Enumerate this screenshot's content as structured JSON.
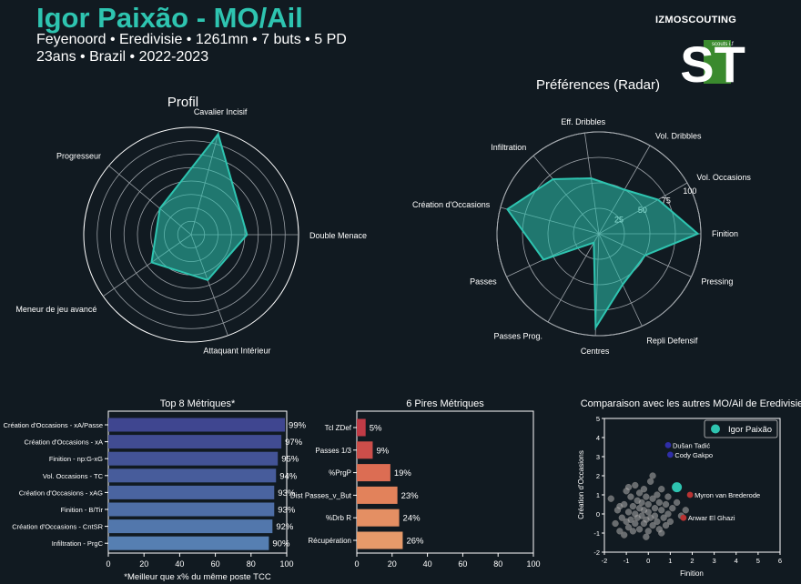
{
  "header": {
    "title": "Igor Paixão - MO/Ail",
    "line1": "Feyenoord • Eredivisie • 1261mn • 7 buts • 5 PD",
    "line2": "23ans • Brazil • 2022-2023",
    "brand": "IZMOSCOUTING",
    "logo_text": "ST",
    "logo_small": "scouts i.f"
  },
  "colors": {
    "bg": "#111a21",
    "accent": "#2ec4b0",
    "grid": "#9aa0a6"
  },
  "chart_data": [
    {
      "id": "profil",
      "type": "radar",
      "title": "Profil",
      "axes": [
        "Cavalier Incisif",
        "Progresseur",
        "Meneur de jeu avancé",
        "Attaquant Intérieur",
        "Double Menace"
      ],
      "angles_deg": [
        75,
        140,
        215,
        290,
        0
      ],
      "values": [
        97,
        38,
        45,
        45,
        52
      ],
      "rmax": 100,
      "rings": 7
    },
    {
      "id": "preferences",
      "type": "radar",
      "title": "Préférences (Radar)",
      "axes": [
        "Finition",
        "Pressing",
        "Repli Defensif",
        "Centres",
        "Passes Prog.",
        "Passes",
        "Création d'Occasions",
        "Infiltration",
        "Eff. Dribbles",
        "Vol. Dribbles",
        "Vol. Occasions"
      ],
      "angles_deg": [
        0,
        -25,
        -65,
        -92,
        -120,
        -155,
        165,
        130,
        98,
        60,
        30
      ],
      "values": [
        97,
        50,
        55,
        92,
        10,
        60,
        93,
        70,
        55,
        50,
        67
      ],
      "rmax": 100,
      "tick_labels": [
        "25",
        "50",
        "75",
        "100"
      ],
      "tick_values": [
        25,
        50,
        75,
        100
      ]
    },
    {
      "id": "top8",
      "type": "bar",
      "orientation": "horizontal",
      "title": "Top 8 Métriques*",
      "categories": [
        "Création d'Occasions - xA/Passe",
        "Création d'Occasions - xA",
        "Finition - np:G-xG",
        "Vol. Occasions - TC",
        "Création d'Occasions - xAG",
        "Finition - B/Tir",
        "Création d'Occasions - CntSR",
        "Infiltration - PrgC"
      ],
      "values": [
        99,
        97,
        95,
        94,
        93,
        93,
        92,
        90
      ],
      "value_labels": [
        "99%",
        "97%",
        "95%",
        "94%",
        "93%",
        "93%",
        "92%",
        "90%"
      ],
      "bar_colors": [
        "#3f4690",
        "#414c92",
        "#435396",
        "#475c9b",
        "#4a64a0",
        "#4e6ea6",
        "#5277ac",
        "#567fb2"
      ],
      "xlim": [
        0,
        100
      ],
      "xticks": [
        "0",
        "20",
        "40",
        "60",
        "80",
        "100"
      ],
      "note": "*Meilleur que x% du même poste TCC"
    },
    {
      "id": "worst6",
      "type": "bar",
      "orientation": "horizontal",
      "title": "6 Pires Métriques",
      "categories": [
        "Tcl ZDef",
        "Passes 1/3",
        "%PrgP",
        "Dist Passes_v_But",
        "%Drb R",
        "Récupération"
      ],
      "values": [
        5,
        9,
        19,
        23,
        24,
        26
      ],
      "value_labels": [
        "5%",
        "9%",
        "19%",
        "23%",
        "24%",
        "26%"
      ],
      "bar_colors": [
        "#c03b46",
        "#cc4e4a",
        "#dc6d53",
        "#e2825b",
        "#e48f63",
        "#e69a6a"
      ],
      "xlim": [
        0,
        100
      ],
      "xticks": [
        "0",
        "20",
        "40",
        "60",
        "80",
        "100"
      ]
    },
    {
      "id": "comparaison",
      "type": "scatter",
      "title": "Comparaison avec les autres MO/Ail de Eredivisie",
      "xlabel": "Finition",
      "ylabel": "Création d'Occasions",
      "xlim": [
        -2,
        6
      ],
      "ylim": [
        -2,
        5
      ],
      "xticks": [
        "-2",
        "-1",
        "0",
        "1",
        "2",
        "3",
        "4",
        "5",
        "6"
      ],
      "yticks": [
        "-2",
        "-1",
        "0",
        "1",
        "2",
        "3",
        "4",
        "5"
      ],
      "legend": "Igor Paixão",
      "others": [
        [
          -1.7,
          0.8
        ],
        [
          -1.5,
          -0.5
        ],
        [
          -1.4,
          0.2
        ],
        [
          -1.3,
          -0.9
        ],
        [
          -1.2,
          -0.2
        ],
        [
          -1.1,
          0.5
        ],
        [
          -1.1,
          -1.1
        ],
        [
          -1.0,
          1.2
        ],
        [
          -1.0,
          -0.4
        ],
        [
          -0.9,
          0.1
        ],
        [
          -0.9,
          -0.7
        ],
        [
          -0.8,
          0.9
        ],
        [
          -0.8,
          -0.3
        ],
        [
          -0.7,
          0.4
        ],
        [
          -0.7,
          -0.9
        ],
        [
          -0.6,
          1.5
        ],
        [
          -0.6,
          0.0
        ],
        [
          -0.6,
          -0.5
        ],
        [
          -0.5,
          0.7
        ],
        [
          -0.5,
          -0.2
        ],
        [
          -0.4,
          1.1
        ],
        [
          -0.4,
          0.3
        ],
        [
          -0.4,
          -0.8
        ],
        [
          -0.3,
          -0.1
        ],
        [
          -0.3,
          0.6
        ],
        [
          -0.2,
          1.3
        ],
        [
          -0.2,
          0.2
        ],
        [
          -0.2,
          -0.5
        ],
        [
          -0.1,
          0.9
        ],
        [
          -0.1,
          -0.3
        ],
        [
          0.0,
          0.5
        ],
        [
          0.0,
          -0.9
        ],
        [
          0.0,
          0.1
        ],
        [
          0.1,
          1.7
        ],
        [
          0.1,
          -0.2
        ],
        [
          0.2,
          0.8
        ],
        [
          0.2,
          -0.6
        ],
        [
          0.3,
          0.3
        ],
        [
          0.3,
          -0.1
        ],
        [
          0.4,
          1.0
        ],
        [
          0.4,
          -0.4
        ],
        [
          0.5,
          0.6
        ],
        [
          0.5,
          -0.8
        ],
        [
          0.6,
          0.2
        ],
        [
          0.6,
          1.3
        ],
        [
          0.7,
          -0.2
        ],
        [
          0.8,
          0.5
        ],
        [
          0.8,
          -0.6
        ],
        [
          0.9,
          0.0
        ],
        [
          0.9,
          0.9
        ],
        [
          1.0,
          -0.4
        ],
        [
          1.1,
          0.3
        ],
        [
          1.3,
          0.6
        ],
        [
          1.5,
          -0.1
        ],
        [
          1.7,
          0.2
        ],
        [
          -1.3,
          0.4
        ],
        [
          -0.9,
          1.4
        ],
        [
          0.2,
          2.0
        ],
        [
          -0.1,
          -1.2
        ],
        [
          0.6,
          -1.0
        ]
      ],
      "highlight": {
        "name": "Igor Paixão",
        "x": 1.3,
        "y": 1.4
      },
      "named": [
        {
          "name": "Dušan Tadić",
          "x": 0.9,
          "y": 3.6,
          "color": "#2f2ea8"
        },
        {
          "name": "Cody Gakpo",
          "x": 1.0,
          "y": 3.1,
          "color": "#2f2ea8"
        },
        {
          "name": "Myron van Brederode",
          "x": 1.9,
          "y": 1.0,
          "color": "#b83333"
        },
        {
          "name": "Anwar El Ghazi",
          "x": 1.6,
          "y": -0.2,
          "color": "#b83333"
        }
      ]
    }
  ]
}
